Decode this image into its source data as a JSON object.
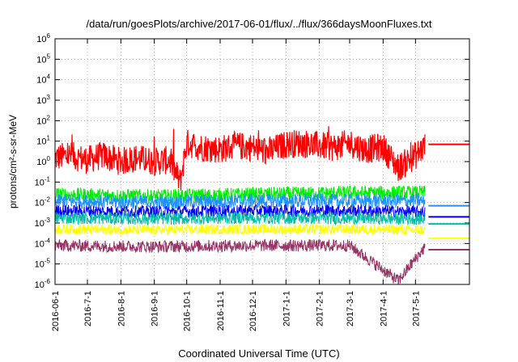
{
  "chart_data": {
    "type": "line",
    "title": "/data/run/goesPlots/archive/2017-06-01/flux/../flux/366daysMoonFluxes.txt",
    "xlabel": "Coordinated Universal Time (UTC)",
    "ylabel": "protons/cm²-s-sr-MeV",
    "yscale": "log",
    "ylim": [
      1e-06,
      1000000.0
    ],
    "ytick_labels": [
      "10-6",
      "10-5",
      "10-4",
      "10-3",
      "10-2",
      "10-1",
      "100",
      "101",
      "102",
      "103",
      "104",
      "105",
      "106"
    ],
    "xlim": [
      "2016-06-01",
      "2017-06-20"
    ],
    "xtick_labels": [
      "2016-06-1",
      "2016-7-1",
      "2016-8-1",
      "2016-9-1",
      "2016-10-1",
      "2016-11-1",
      "2016-12-1",
      "2017-1-1",
      "2017-2-1",
      "2017-3-1",
      "2017-4-1",
      "2017-5-1"
    ],
    "grid": true,
    "legend": "none",
    "series": [
      {
        "color": "#ff0000",
        "x": [
          "2016-06-01",
          "2016-06-15",
          "2016-07-01",
          "2016-07-15",
          "2016-08-01",
          "2016-08-15",
          "2016-09-01",
          "2016-09-15",
          "2016-09-25",
          "2016-10-01",
          "2016-10-15",
          "2016-11-01",
          "2016-11-15",
          "2016-12-01",
          "2016-12-15",
          "2017-01-01",
          "2017-01-15",
          "2017-02-01",
          "2017-02-15",
          "2017-03-01",
          "2017-03-15",
          "2017-04-01",
          "2017-04-15",
          "2017-05-01",
          "2017-05-10"
        ],
        "values": [
          1.5,
          2,
          1.2,
          2,
          1,
          1.5,
          1,
          1.2,
          0.1,
          8,
          5,
          4,
          6,
          5,
          3,
          7,
          8,
          6,
          5,
          8,
          4,
          5,
          0.5,
          2,
          6
        ]
      },
      {
        "color": "#00ee00",
        "x": [
          "2016-06-01",
          "2016-09-01",
          "2016-12-01",
          "2017-03-01",
          "2017-05-10"
        ],
        "values": [
          0.025,
          0.02,
          0.025,
          0.03,
          0.03
        ]
      },
      {
        "color": "#1e90ff",
        "x": [
          "2016-06-01",
          "2016-09-01",
          "2016-12-01",
          "2017-03-01",
          "2017-05-10"
        ],
        "values": [
          0.012,
          0.01,
          0.012,
          0.012,
          0.012
        ]
      },
      {
        "color": "#0000ff",
        "x": [
          "2016-06-01",
          "2016-09-01",
          "2016-12-01",
          "2017-03-01",
          "2017-05-10"
        ],
        "values": [
          0.004,
          0.0035,
          0.004,
          0.004,
          0.0035
        ]
      },
      {
        "color": "#00bfa5",
        "x": [
          "2016-06-01",
          "2016-09-01",
          "2016-12-01",
          "2017-03-01",
          "2017-05-10"
        ],
        "values": [
          0.0018,
          0.0016,
          0.0018,
          0.0017,
          0.0016
        ]
      },
      {
        "color": "#ffff00",
        "x": [
          "2016-06-01",
          "2016-09-01",
          "2016-12-01",
          "2017-03-01",
          "2017-05-10"
        ],
        "values": [
          0.0005,
          0.00045,
          0.0005,
          0.0005,
          0.00045
        ]
      },
      {
        "color": "#993366",
        "x": [
          "2016-06-01",
          "2016-09-01",
          "2016-12-01",
          "2017-03-01",
          "2017-04-15",
          "2017-05-10"
        ],
        "values": [
          8e-05,
          7e-05,
          8e-05,
          8e-05,
          1.5e-06,
          7e-05
        ]
      }
    ],
    "right_markers": [
      {
        "color": "#ff0000",
        "value": 7
      },
      {
        "color": "#1e90ff",
        "value": 0.007
      },
      {
        "color": "#0000ff",
        "value": 0.002
      },
      {
        "color": "#00bfa5",
        "value": 0.0009
      },
      {
        "color": "#ffff00",
        "value": 0.00018
      },
      {
        "color": "#993366",
        "value": 5e-05
      }
    ]
  }
}
